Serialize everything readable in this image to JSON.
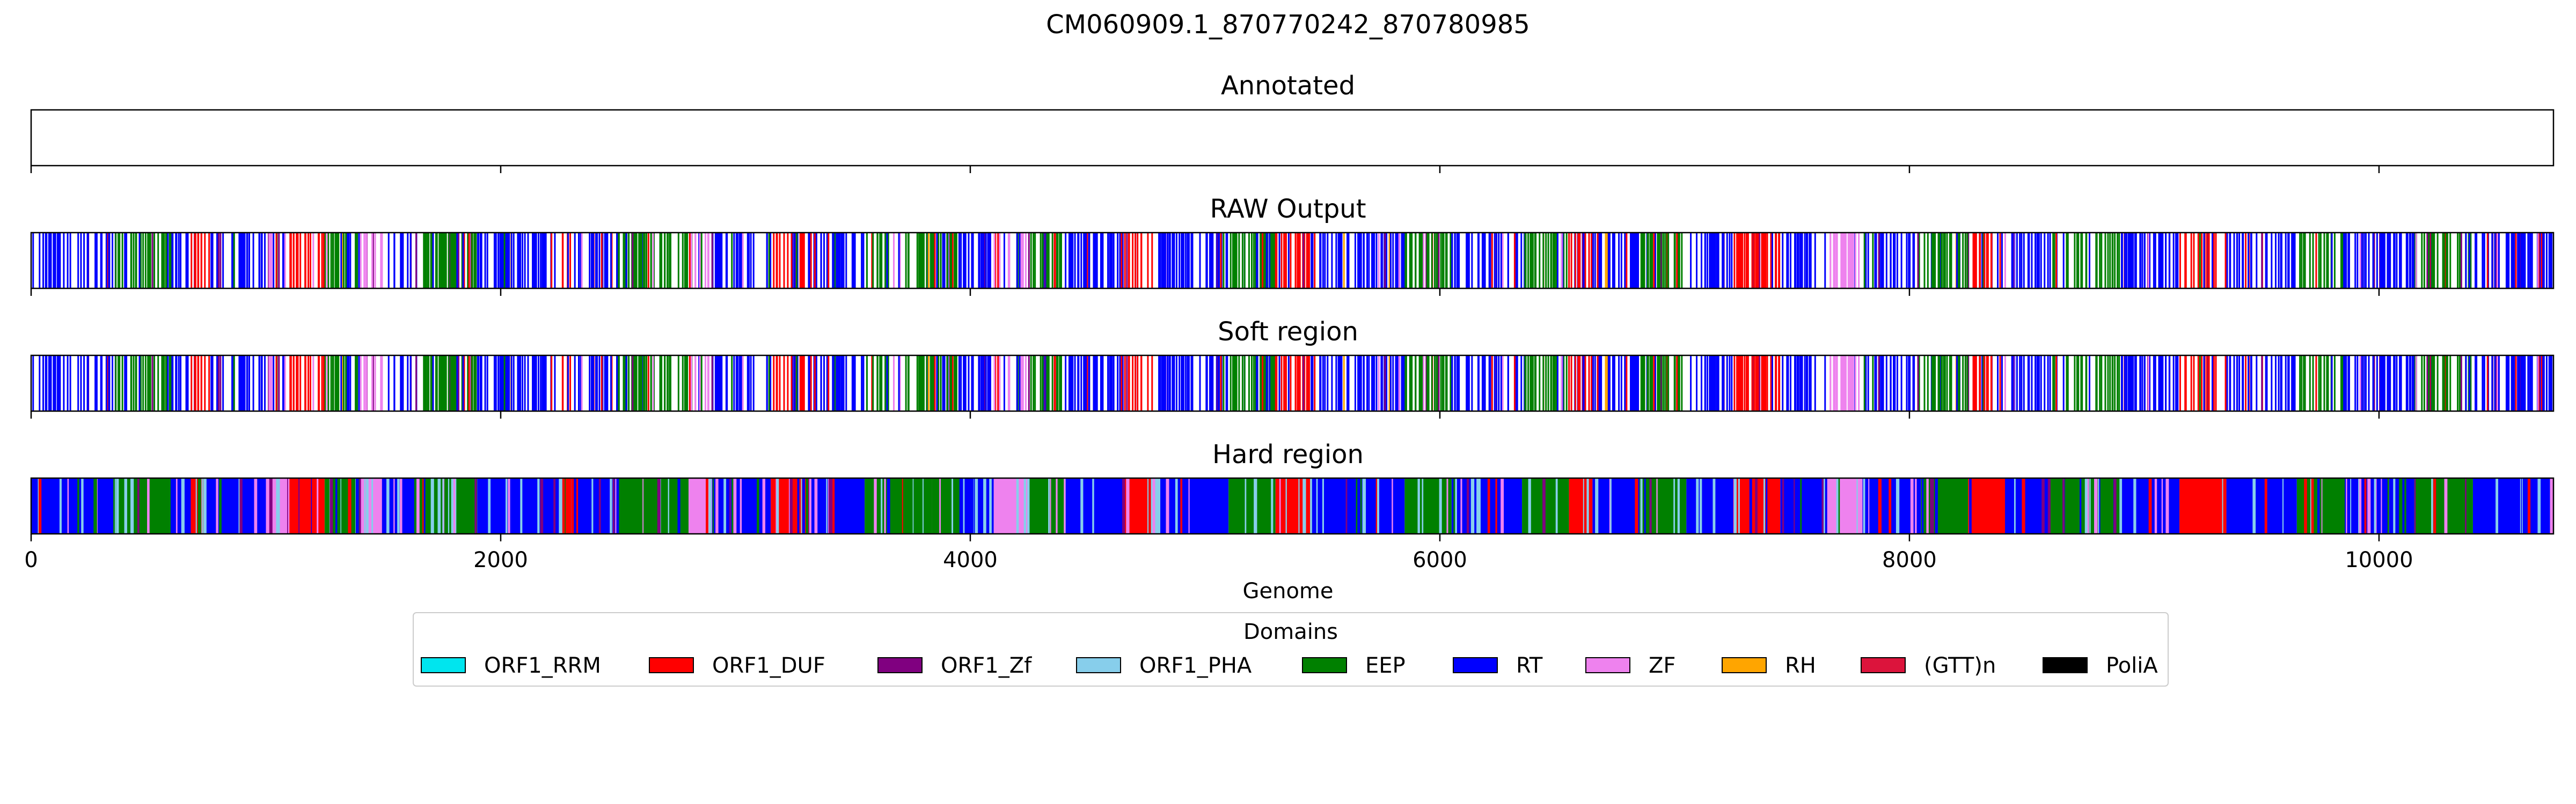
{
  "chart_data": {
    "type": "track",
    "title": "CM060909.1_870770242_870780985",
    "xlabel": "Genome",
    "xlim": [
      0,
      10743
    ],
    "xticks": [
      0,
      2000,
      4000,
      6000,
      8000,
      10000
    ],
    "xtick_labels": [
      "0",
      "2000",
      "4000",
      "6000",
      "8000",
      "10000"
    ],
    "legend": {
      "title": "Domains",
      "placement": "bottom-center",
      "entries": [
        {
          "label": "ORF1_RRM",
          "color": "#00e5ee"
        },
        {
          "label": "ORF1_DUF",
          "color": "#ff0000"
        },
        {
          "label": "ORF1_Zf",
          "color": "#800080"
        },
        {
          "label": "ORF1_PHA",
          "color": "#87ceeb"
        },
        {
          "label": "EEP",
          "color": "#008000"
        },
        {
          "label": "RT",
          "color": "#0000ff"
        },
        {
          "label": "ZF",
          "color": "#ee82ee"
        },
        {
          "label": "RH",
          "color": "#ffa500"
        },
        {
          "label": "(GTT)n",
          "color": "#dc143c"
        },
        {
          "label": "PoliA",
          "color": "#000000"
        }
      ]
    },
    "panels": [
      {
        "title": "Annotated",
        "mode": "empty"
      },
      {
        "title": "RAW Output",
        "mode": "lines"
      },
      {
        "title": "Soft region",
        "mode": "lines"
      },
      {
        "title": "Hard region",
        "mode": "blocks"
      }
    ],
    "segments": [
      {
        "x": [
          0,
          350
        ],
        "domain": "RT"
      },
      {
        "x": [
          350,
          600
        ],
        "domain": "EEP"
      },
      {
        "x": [
          600,
          680
        ],
        "domain": "RT"
      },
      {
        "x": [
          680,
          760
        ],
        "domain": "ORF1_DUF"
      },
      {
        "x": [
          760,
          1000
        ],
        "domain": "RT"
      },
      {
        "x": [
          1000,
          1100
        ],
        "domain": "ZF"
      },
      {
        "x": [
          1100,
          1250
        ],
        "domain": "ORF1_DUF"
      },
      {
        "x": [
          1250,
          1400
        ],
        "domain": "EEP"
      },
      {
        "x": [
          1400,
          1500
        ],
        "domain": "ZF"
      },
      {
        "x": [
          1500,
          1650
        ],
        "domain": "RT"
      },
      {
        "x": [
          1650,
          1900
        ],
        "domain": "EEP"
      },
      {
        "x": [
          1900,
          2250
        ],
        "domain": "RT"
      },
      {
        "x": [
          2250,
          2300
        ],
        "domain": "ORF1_DUF"
      },
      {
        "x": [
          2300,
          2500
        ],
        "domain": "RT"
      },
      {
        "x": [
          2500,
          2800
        ],
        "domain": "EEP"
      },
      {
        "x": [
          2800,
          2900
        ],
        "domain": "ZF"
      },
      {
        "x": [
          2900,
          3150
        ],
        "domain": "RT"
      },
      {
        "x": [
          3150,
          3300
        ],
        "domain": "ORF1_DUF"
      },
      {
        "x": [
          3300,
          3550
        ],
        "domain": "RT"
      },
      {
        "x": [
          3550,
          3950
        ],
        "domain": "EEP"
      },
      {
        "x": [
          3950,
          4100
        ],
        "domain": "RT"
      },
      {
        "x": [
          4100,
          4250
        ],
        "domain": "ZF"
      },
      {
        "x": [
          4250,
          4400
        ],
        "domain": "EEP"
      },
      {
        "x": [
          4400,
          4650
        ],
        "domain": "RT"
      },
      {
        "x": [
          4650,
          4800
        ],
        "domain": "ORF1_DUF"
      },
      {
        "x": [
          4800,
          5100
        ],
        "domain": "RT"
      },
      {
        "x": [
          5100,
          5300
        ],
        "domain": "EEP"
      },
      {
        "x": [
          5300,
          5450
        ],
        "domain": "ORF1_DUF"
      },
      {
        "x": [
          5450,
          5850
        ],
        "domain": "RT"
      },
      {
        "x": [
          5850,
          6050
        ],
        "domain": "EEP"
      },
      {
        "x": [
          6050,
          6350
        ],
        "domain": "RT"
      },
      {
        "x": [
          6350,
          6550
        ],
        "domain": "EEP"
      },
      {
        "x": [
          6550,
          6650
        ],
        "domain": "ORF1_DUF"
      },
      {
        "x": [
          6650,
          6850
        ],
        "domain": "RT"
      },
      {
        "x": [
          6850,
          7050
        ],
        "domain": "EEP"
      },
      {
        "x": [
          7050,
          7250
        ],
        "domain": "RT"
      },
      {
        "x": [
          7250,
          7450
        ],
        "domain": "ORF1_DUF"
      },
      {
        "x": [
          7450,
          7650
        ],
        "domain": "RT"
      },
      {
        "x": [
          7650,
          7800
        ],
        "domain": "ZF"
      },
      {
        "x": [
          7800,
          8050
        ],
        "domain": "RT"
      },
      {
        "x": [
          8050,
          8250
        ],
        "domain": "EEP"
      },
      {
        "x": [
          8250,
          8400
        ],
        "domain": "ORF1_DUF"
      },
      {
        "x": [
          8400,
          8600
        ],
        "domain": "RT"
      },
      {
        "x": [
          8600,
          8900
        ],
        "domain": "EEP"
      },
      {
        "x": [
          8900,
          9150
        ],
        "domain": "RT"
      },
      {
        "x": [
          9150,
          9350
        ],
        "domain": "ORF1_DUF"
      },
      {
        "x": [
          9350,
          9650
        ],
        "domain": "RT"
      },
      {
        "x": [
          9650,
          9850
        ],
        "domain": "EEP"
      },
      {
        "x": [
          9850,
          10150
        ],
        "domain": "RT"
      },
      {
        "x": [
          10150,
          10400
        ],
        "domain": "EEP"
      },
      {
        "x": [
          10400,
          10743
        ],
        "domain": "RT"
      }
    ]
  }
}
